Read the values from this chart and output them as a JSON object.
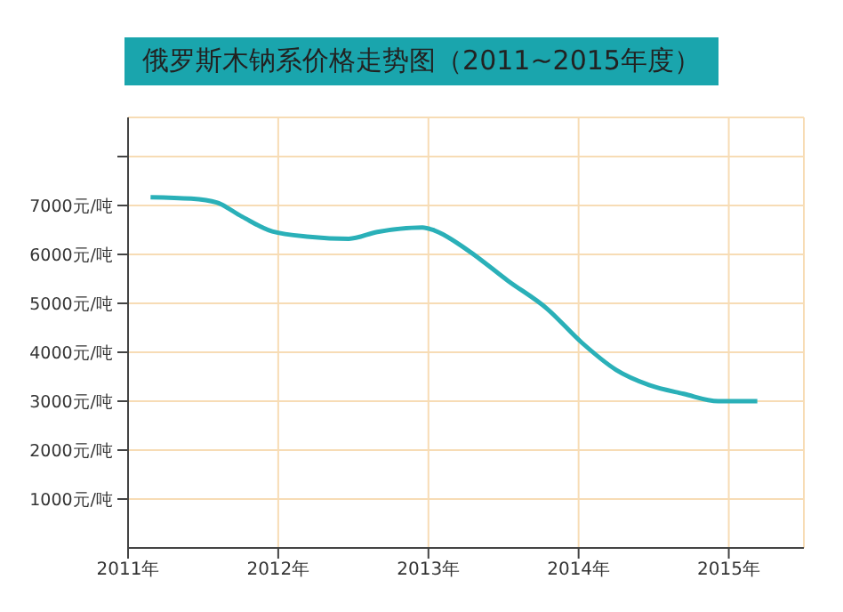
{
  "chart_data": {
    "type": "line",
    "title": "俄罗斯木钠系价格走势图（2011~2015年度）",
    "x": [
      2011.15,
      2011.42,
      2011.59,
      2011.76,
      2011.96,
      2012.21,
      2012.47,
      2012.66,
      2012.96,
      2013.04,
      2013.26,
      2013.53,
      2013.79,
      2014.02,
      2014.25,
      2014.47,
      2014.7,
      2014.93,
      2015.19
    ],
    "series": [
      {
        "color": "#2ab0b8",
        "values": [
          7170,
          7140,
          7060,
          6770,
          6470,
          6360,
          6320,
          6460,
          6550,
          6490,
          6090,
          5460,
          4890,
          4200,
          3640,
          3330,
          3150,
          3000,
          3000
        ]
      }
    ],
    "xlim": [
      2011,
      2015.5
    ],
    "xticks": [
      {
        "value": 2011,
        "label": "2011年"
      },
      {
        "value": 2012,
        "label": "2012年"
      },
      {
        "value": 2013,
        "label": "2013年"
      },
      {
        "value": 2014,
        "label": "2014年"
      },
      {
        "value": 2015,
        "label": "2015年"
      }
    ],
    "ylim": [
      0,
      8800
    ],
    "yticks": [
      {
        "value": 1000,
        "label": "1000元/吨"
      },
      {
        "value": 2000,
        "label": "2000元/吨"
      },
      {
        "value": 3000,
        "label": "3000元/吨"
      },
      {
        "value": 4000,
        "label": "4000元/吨"
      },
      {
        "value": 5000,
        "label": "5000元/吨"
      },
      {
        "value": 6000,
        "label": "6000元/吨"
      },
      {
        "value": 7000,
        "label": "7000元/吨"
      },
      {
        "value": 8000,
        "label": null
      }
    ],
    "grid": true,
    "legend": false,
    "marker": "none",
    "line_style": "solid"
  }
}
